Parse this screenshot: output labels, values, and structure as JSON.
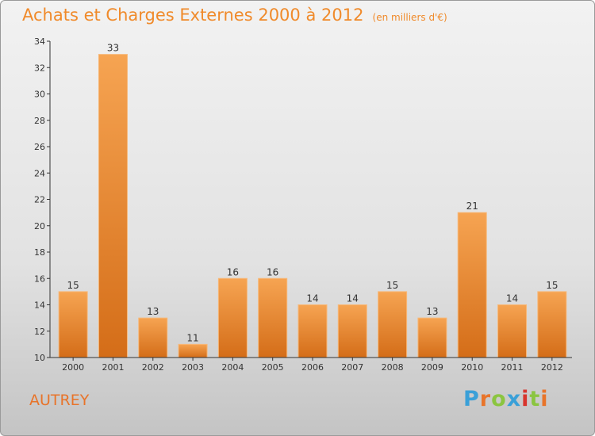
{
  "header": {
    "title": "Achats et Charges Externes 2000 à 2012",
    "unit": "(en milliers d'€)"
  },
  "footer": {
    "commune": "AUTREY",
    "logo": "Proxiti",
    "logo_colors": [
      "#3aa0d8",
      "#e8742a",
      "#8bc540",
      "#3aa0d8",
      "#d8342c",
      "#8bc540",
      "#e8742a"
    ]
  },
  "colors": {
    "bar_light": "#f6a452",
    "bar_dark": "#d46d18",
    "title": "#f08a2a",
    "axis": "#333333"
  },
  "chart_data": {
    "type": "bar",
    "title": "Achats et Charges Externes 2000 à 2012",
    "categories": [
      "2000",
      "2001",
      "2002",
      "2003",
      "2004",
      "2005",
      "2006",
      "2007",
      "2008",
      "2009",
      "2010",
      "2011",
      "2012"
    ],
    "values": [
      15,
      33,
      13,
      11,
      16,
      16,
      14,
      14,
      15,
      13,
      21,
      14,
      15
    ],
    "ylim": [
      10,
      34
    ],
    "yticks": [
      10,
      12,
      14,
      16,
      18,
      20,
      22,
      24,
      26,
      28,
      30,
      32,
      34
    ],
    "grid": false,
    "legend": "none"
  }
}
